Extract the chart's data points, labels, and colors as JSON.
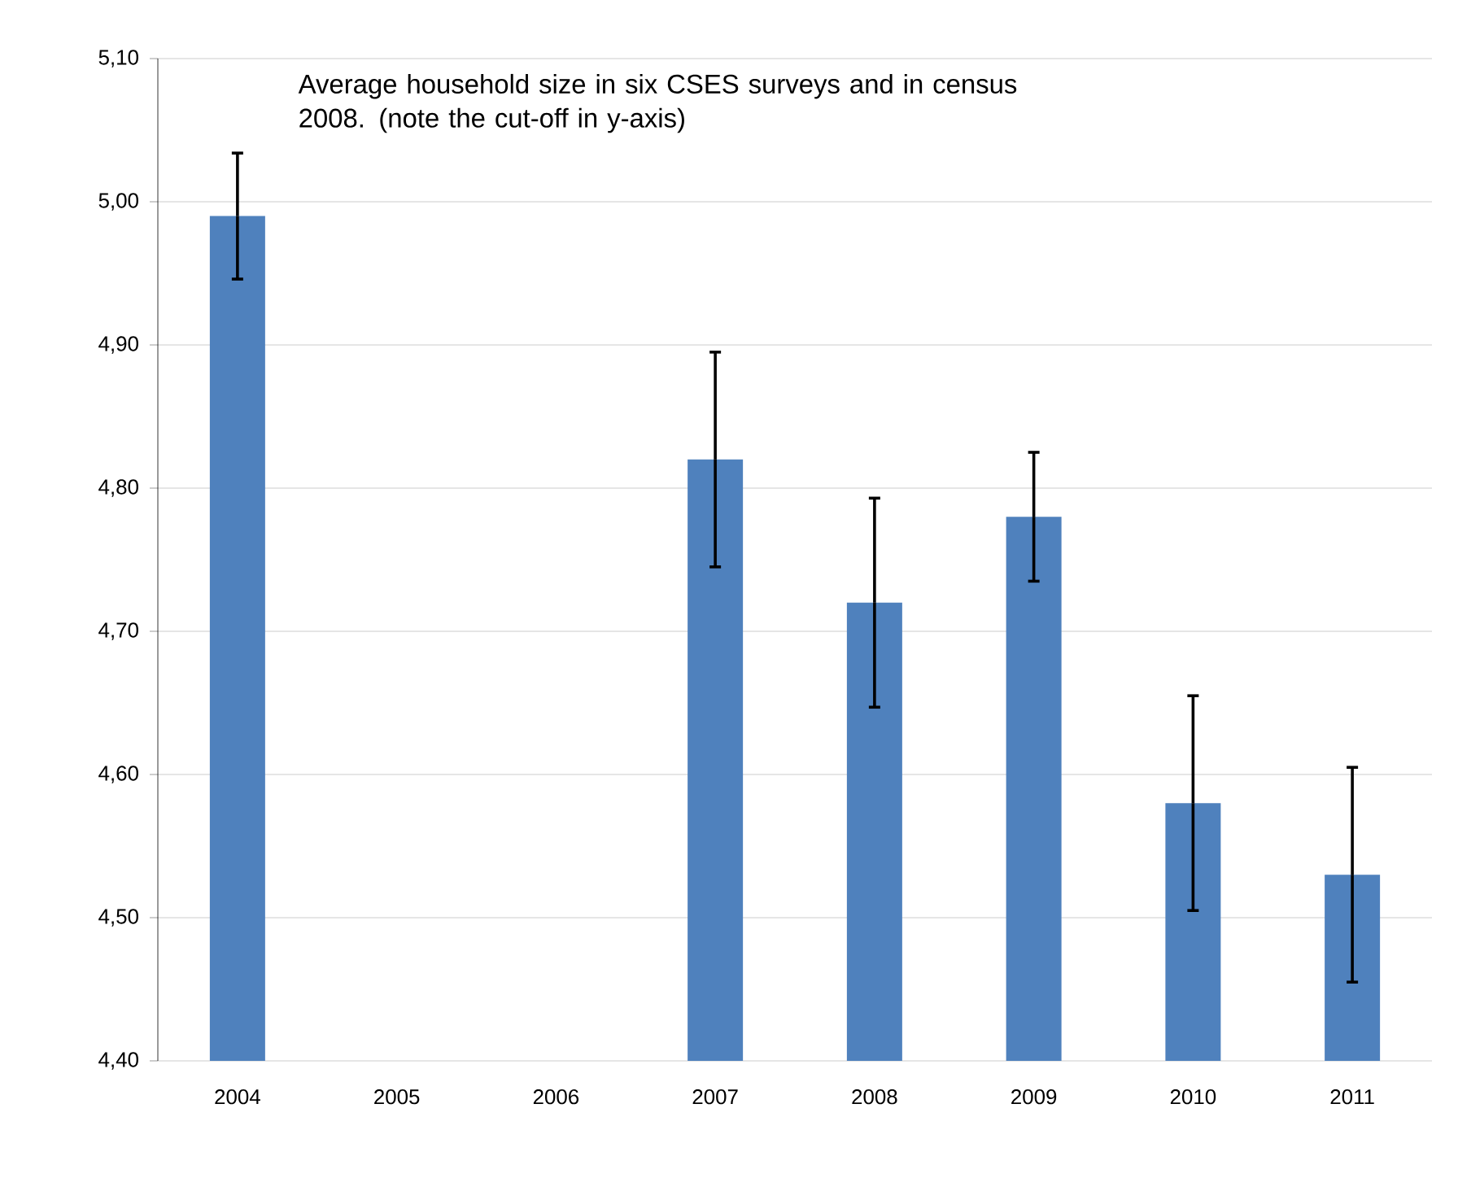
{
  "chart_data": {
    "type": "bar",
    "title": "Average household size in six CSES surveys and in census 2008. (note the cut-off in y-axis)",
    "categories": [
      "2004",
      "2005",
      "2006",
      "2007",
      "2008",
      "2009",
      "2010",
      "2011"
    ],
    "values": [
      4.99,
      null,
      null,
      4.82,
      4.72,
      4.78,
      4.58,
      4.53
    ],
    "errors": [
      0.044,
      null,
      null,
      0.075,
      0.073,
      0.045,
      0.075,
      0.075
    ],
    "color": "#4f81bd",
    "ylim": [
      4.4,
      5.1
    ],
    "yticks": [
      {
        "value": 4.4,
        "label": "4,40"
      },
      {
        "value": 4.5,
        "label": "4,50"
      },
      {
        "value": 4.6,
        "label": "4,60"
      },
      {
        "value": 4.7,
        "label": "4,70"
      },
      {
        "value": 4.8,
        "label": "4,80"
      },
      {
        "value": 4.9,
        "label": "4,90"
      },
      {
        "value": 5.0,
        "label": "5,00"
      },
      {
        "value": 5.1,
        "label": "5,10"
      }
    ],
    "grid": "y"
  }
}
